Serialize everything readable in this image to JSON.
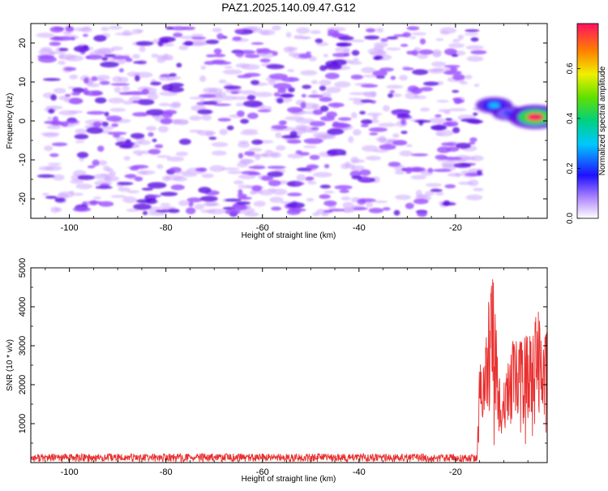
{
  "title": "PAZ1.2025.140.09.47.G12",
  "colors": {
    "snr_line": "#e8302f",
    "axis": "#000000",
    "background": "#ffffff",
    "speckle_light": "#cda8ff",
    "speckle_mid": "#9a4dff",
    "speckle_dark": "#5a10e0"
  },
  "chart_data": [
    {
      "type": "heatmap",
      "name": "spectrogram",
      "xlabel": "Height of straight line (km)",
      "ylabel": "Frequency (Hz)",
      "xlim": [
        -108,
        -1
      ],
      "ylim": [
        -25,
        25
      ],
      "xticks": [
        -100,
        -80,
        -60,
        -40,
        -20
      ],
      "yticks": [
        -20,
        -10,
        0,
        10,
        20
      ],
      "colorbar": {
        "label": "Normalized spectral amplitude",
        "range": [
          0.0,
          0.78
        ],
        "ticks": [
          0.0,
          0.2,
          0.4,
          0.6
        ]
      },
      "data_region_x": [
        -105,
        -15
      ],
      "data_region_freq": [
        -24,
        24
      ],
      "background_amplitude": [
        0.0,
        0.12
      ],
      "hotspots": [
        {
          "x": -12,
          "freq": 4,
          "amplitude": 0.3
        },
        {
          "x": -9,
          "freq": 2,
          "amplitude": 0.2
        },
        {
          "x": -4,
          "freq": 1.5,
          "amplitude": 0.45
        },
        {
          "x": -3.5,
          "freq": 1,
          "amplitude": 0.78
        }
      ]
    },
    {
      "type": "line",
      "name": "snr",
      "xlabel": "Height of straight line (km)",
      "ylabel": "SNR (10 * v/v)",
      "xlim": [
        -108,
        -1
      ],
      "ylim": [
        0,
        5000
      ],
      "xticks": [
        -100,
        -80,
        -60,
        -40,
        -20
      ],
      "yticks": [
        1000,
        2000,
        3000,
        4000,
        5000
      ],
      "noise_level": 100,
      "noise_range": [
        20,
        230
      ],
      "onset_x": -15.5,
      "keypoints": [
        {
          "x": -108,
          "y": 100
        },
        {
          "x": -16,
          "y": 150
        },
        {
          "x": -15.5,
          "y": 400
        },
        {
          "x": -15,
          "y": 2500
        },
        {
          "x": -14,
          "y": 3500
        },
        {
          "x": -13,
          "y": 4200
        },
        {
          "x": -12.5,
          "y": 5000
        },
        {
          "x": -11.5,
          "y": 3000
        },
        {
          "x": -10.5,
          "y": 1500
        },
        {
          "x": -9.5,
          "y": 2300
        },
        {
          "x": -8,
          "y": 3000
        },
        {
          "x": -6,
          "y": 2800
        },
        {
          "x": -4,
          "y": 3500
        },
        {
          "x": -3,
          "y": 3800
        },
        {
          "x": -2,
          "y": 3200
        },
        {
          "x": -1,
          "y": 3300
        }
      ]
    }
  ]
}
